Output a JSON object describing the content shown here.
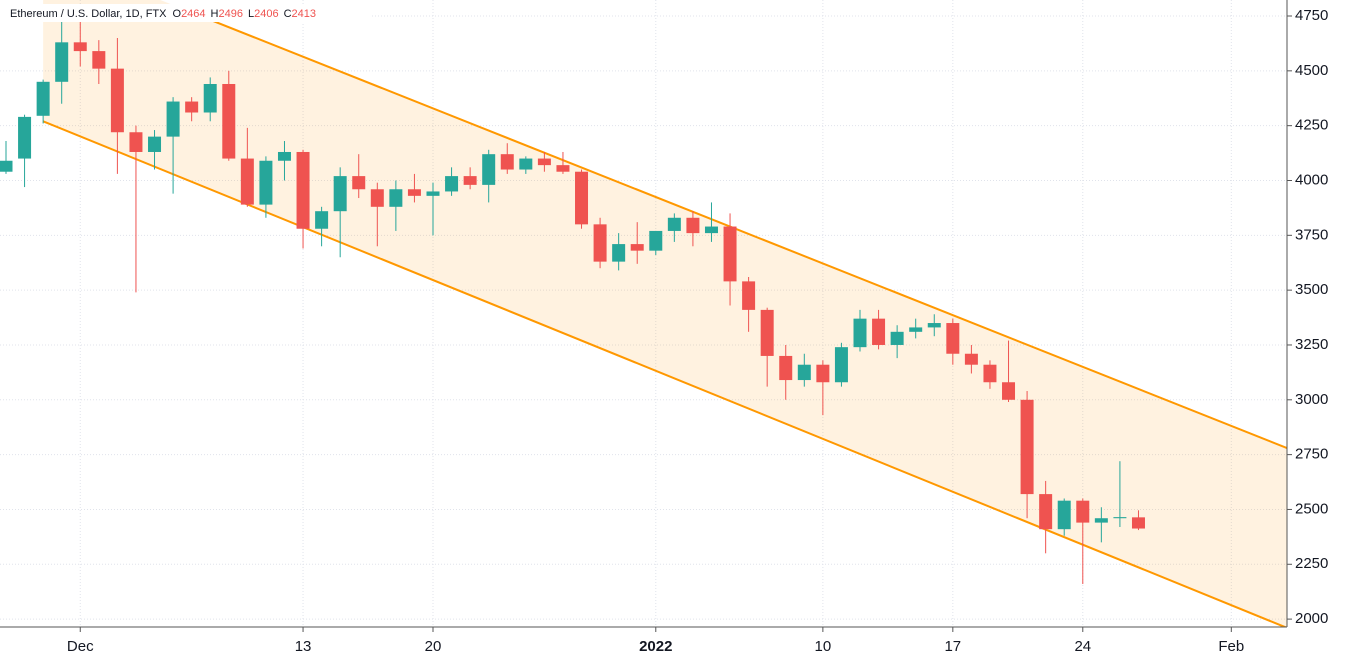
{
  "chart_data": {
    "type": "candlestick",
    "title": "Ethereum / U.S. Dollar, 1D, FTX",
    "ohlc_legend": [
      {
        "label": "O",
        "value": 2464
      },
      {
        "label": "H",
        "value": 2496
      },
      {
        "label": "L",
        "value": 2406
      },
      {
        "label": "C",
        "value": 2413
      }
    ],
    "x": [
      "2021-11-27",
      "2021-11-28",
      "2021-11-29",
      "2021-11-30",
      "2021-12-01",
      "2021-12-02",
      "2021-12-03",
      "2021-12-04",
      "2021-12-05",
      "2021-12-06",
      "2021-12-07",
      "2021-12-08",
      "2021-12-09",
      "2021-12-10",
      "2021-12-11",
      "2021-12-12",
      "2021-12-13",
      "2021-12-14",
      "2021-12-15",
      "2021-12-16",
      "2021-12-17",
      "2021-12-18",
      "2021-12-19",
      "2021-12-20",
      "2021-12-21",
      "2021-12-22",
      "2021-12-23",
      "2021-12-24",
      "2021-12-25",
      "2021-12-26",
      "2021-12-27",
      "2021-12-28",
      "2021-12-29",
      "2021-12-30",
      "2021-12-31",
      "2022-01-01",
      "2022-01-02",
      "2022-01-03",
      "2022-01-04",
      "2022-01-05",
      "2022-01-06",
      "2022-01-07",
      "2022-01-08",
      "2022-01-09",
      "2022-01-10",
      "2022-01-11",
      "2022-01-12",
      "2022-01-13",
      "2022-01-14",
      "2022-01-15",
      "2022-01-16",
      "2022-01-17",
      "2022-01-18",
      "2022-01-19",
      "2022-01-20",
      "2022-01-21",
      "2022-01-22",
      "2022-01-23",
      "2022-01-24",
      "2022-01-25",
      "2022-01-26",
      "2022-01-27"
    ],
    "open": [
      4040,
      4100,
      4295,
      4450,
      4630,
      4590,
      4510,
      4220,
      4130,
      4200,
      4360,
      4310,
      4440,
      4100,
      3890,
      4090,
      4130,
      3780,
      3860,
      4020,
      3960,
      3880,
      3960,
      3930,
      3950,
      4020,
      3980,
      4120,
      4050,
      4100,
      4070,
      4040,
      3800,
      3630,
      3710,
      3680,
      3770,
      3830,
      3760,
      3790,
      3540,
      3410,
      3200,
      3090,
      3160,
      3080,
      3240,
      3370,
      3250,
      3310,
      3330,
      3350,
      3210,
      3160,
      3080,
      3000,
      2570,
      2410,
      2540,
      2440,
      2460,
      2464
    ],
    "high": [
      4180,
      4300,
      4460,
      4730,
      4780,
      4640,
      4650,
      4250,
      4230,
      4380,
      4380,
      4470,
      4500,
      4240,
      4110,
      4180,
      4140,
      3880,
      4060,
      4120,
      3990,
      4000,
      4030,
      3990,
      4060,
      4060,
      4140,
      4170,
      4110,
      4130,
      4130,
      4050,
      3830,
      3760,
      3810,
      3770,
      3850,
      3860,
      3900,
      3850,
      3560,
      3420,
      3250,
      3210,
      3180,
      3260,
      3410,
      3410,
      3340,
      3370,
      3390,
      3370,
      3250,
      3180,
      3270,
      3040,
      2630,
      2550,
      2550,
      2510,
      2720,
      2496
    ],
    "low": [
      4030,
      3970,
      4260,
      4350,
      4520,
      4440,
      4030,
      3490,
      4050,
      3940,
      4270,
      4270,
      4090,
      3880,
      3830,
      4000,
      3690,
      3700,
      3650,
      3920,
      3700,
      3770,
      3900,
      3750,
      3930,
      3960,
      3900,
      4030,
      4030,
      4040,
      4030,
      3780,
      3600,
      3590,
      3620,
      3660,
      3720,
      3700,
      3720,
      3430,
      3310,
      3060,
      3000,
      3060,
      2930,
      3060,
      3220,
      3230,
      3190,
      3280,
      3290,
      3160,
      3120,
      3050,
      2990,
      2460,
      2300,
      2380,
      2160,
      2350,
      2420,
      2406
    ],
    "close": [
      4090,
      4290,
      4450,
      4630,
      4590,
      4510,
      4220,
      4130,
      4200,
      4360,
      4310,
      4440,
      4100,
      3890,
      4090,
      4130,
      3780,
      3860,
      4020,
      3960,
      3880,
      3960,
      3930,
      3950,
      4020,
      3980,
      4120,
      4050,
      4100,
      4070,
      4040,
      3800,
      3630,
      3710,
      3680,
      3770,
      3830,
      3760,
      3790,
      3540,
      3410,
      3200,
      3090,
      3160,
      3080,
      3240,
      3370,
      3250,
      3310,
      3330,
      3350,
      3210,
      3160,
      3080,
      3000,
      2570,
      2410,
      2540,
      2440,
      2460,
      2465,
      2413
    ],
    "up_color": "#26a69a",
    "down_color": "#ef5350",
    "channel": {
      "color": "#ff9800",
      "upper": {
        "x": [
          "2021-12-06",
          "2022-02-04"
        ],
        "values": [
          4800,
          2780
        ]
      },
      "lower": {
        "x": [
          "2021-11-29",
          "2022-02-04"
        ],
        "values": [
          4270,
          1960
        ]
      }
    },
    "xlim": [
      "2021-11-27",
      "2022-02-04"
    ],
    "xticks": [
      {
        "value": "2021-12-01",
        "label": "Dec"
      },
      {
        "value": "2021-12-13",
        "label": "13"
      },
      {
        "value": "2021-12-20",
        "label": "20"
      },
      {
        "value": "2022-01-01",
        "label": "2022"
      },
      {
        "value": "2022-01-10",
        "label": "10"
      },
      {
        "value": "2022-01-17",
        "label": "17"
      },
      {
        "value": "2022-01-24",
        "label": "24"
      },
      {
        "value": "2022-02-01",
        "label": "Feb"
      }
    ],
    "ylim": [
      1964,
      4823
    ],
    "yticks": [
      2000,
      2250,
      2500,
      2750,
      3000,
      3250,
      3500,
      3750,
      4000,
      4250,
      4500,
      4750
    ],
    "grid": true
  }
}
